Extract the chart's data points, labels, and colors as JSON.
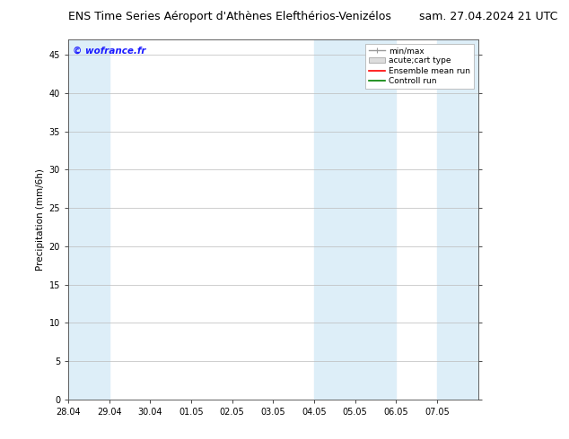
{
  "title_left": "ENS Time Series Aéroport d'Athènes Elefthérios-Venizélos",
  "title_right": "sam. 27.04.2024 21 UTC",
  "ylabel": "Precipitation (mm/6h)",
  "watermark": "© wofrance.fr",
  "watermark_color": "#1a1aff",
  "xlim_start": 0,
  "xlim_end": 10,
  "ylim": [
    0,
    47
  ],
  "yticks": [
    0,
    5,
    10,
    15,
    20,
    25,
    30,
    35,
    40,
    45
  ],
  "xtick_labels": [
    "28.04",
    "29.04",
    "30.04",
    "01.05",
    "02.05",
    "03.05",
    "04.05",
    "05.05",
    "06.05",
    "07.05"
  ],
  "xtick_positions": [
    0,
    1,
    2,
    3,
    4,
    5,
    6,
    7,
    8,
    9
  ],
  "shaded_bands": [
    {
      "x_start": 0,
      "x_end": 1,
      "color": "#ddeef8"
    },
    {
      "x_start": 6,
      "x_end": 8,
      "color": "#ddeef8"
    },
    {
      "x_start": 9,
      "x_end": 10,
      "color": "#ddeef8"
    }
  ],
  "legend_entries": [
    {
      "label": "min/max",
      "type": "errorbar",
      "color": "#aaaaaa"
    },
    {
      "label": "acute;cart type",
      "type": "bar",
      "color": "#cccccc"
    },
    {
      "label": "Ensemble mean run",
      "type": "line",
      "color": "#ff0000"
    },
    {
      "label": "Controll run",
      "type": "line",
      "color": "#008000"
    }
  ],
  "bg_color": "#ffffff",
  "plot_bg_color": "#ffffff",
  "grid_color": "#bbbbbb",
  "tick_label_fontsize": 7,
  "title_fontsize": 9,
  "ylabel_fontsize": 7.5,
  "legend_fontsize": 6.5,
  "spine_color": "#555555"
}
